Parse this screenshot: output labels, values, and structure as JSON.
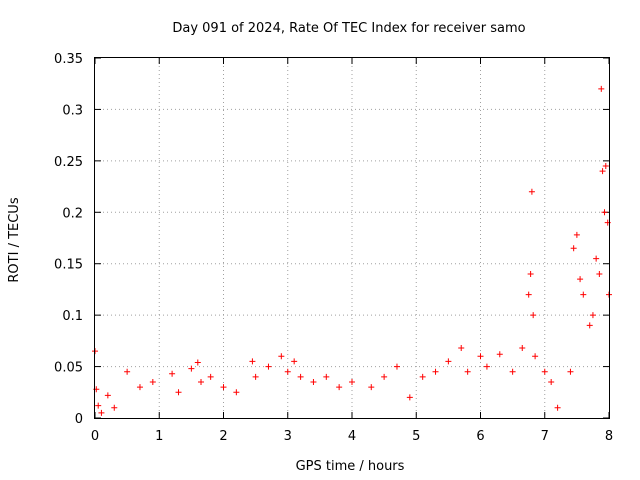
{
  "chart_data": {
    "type": "scatter",
    "title": "Day 091 of 2024, Rate Of TEC Index for receiver samo",
    "xlabel": "GPS time / hours",
    "ylabel": "ROTI / TECUs",
    "xlim": [
      0,
      8
    ],
    "ylim": [
      0,
      0.35
    ],
    "xticks": [
      "0",
      "1",
      "2",
      "3",
      "4",
      "5",
      "6",
      "7",
      "8"
    ],
    "yticks": [
      "0",
      "0.05",
      "0.1",
      "0.15",
      "0.2",
      "0.25",
      "0.3",
      "0.35"
    ],
    "grid": true,
    "marker": "+",
    "color": "#ff0000",
    "series": [
      {
        "name": "ROTI",
        "x": [
          0.0,
          0.02,
          0.05,
          0.1,
          0.2,
          0.3,
          0.5,
          0.7,
          0.9,
          1.2,
          1.3,
          1.5,
          1.6,
          1.65,
          1.8,
          2.0,
          2.2,
          2.45,
          2.5,
          2.7,
          2.9,
          3.0,
          3.1,
          3.2,
          3.4,
          3.6,
          3.8,
          4.0,
          4.3,
          4.5,
          4.7,
          4.9,
          5.1,
          5.3,
          5.5,
          5.7,
          5.8,
          6.0,
          6.1,
          6.3,
          6.5,
          6.65,
          6.75,
          6.78,
          6.8,
          6.82,
          6.85,
          7.0,
          7.1,
          7.2,
          7.4,
          7.45,
          7.5,
          7.55,
          7.6,
          7.7,
          7.75,
          7.8,
          7.85,
          7.88,
          7.9,
          7.93,
          7.95,
          7.98,
          8.0
        ],
        "y": [
          0.065,
          0.028,
          0.012,
          0.005,
          0.022,
          0.01,
          0.045,
          0.03,
          0.035,
          0.043,
          0.025,
          0.048,
          0.054,
          0.035,
          0.04,
          0.03,
          0.025,
          0.055,
          0.04,
          0.05,
          0.06,
          0.045,
          0.055,
          0.04,
          0.035,
          0.04,
          0.03,
          0.035,
          0.03,
          0.04,
          0.05,
          0.02,
          0.04,
          0.045,
          0.055,
          0.068,
          0.045,
          0.06,
          0.05,
          0.062,
          0.045,
          0.068,
          0.12,
          0.14,
          0.22,
          0.1,
          0.06,
          0.045,
          0.035,
          0.01,
          0.045,
          0.165,
          0.178,
          0.135,
          0.12,
          0.09,
          0.1,
          0.155,
          0.14,
          0.32,
          0.24,
          0.2,
          0.245,
          0.19,
          0.12
        ]
      }
    ]
  }
}
